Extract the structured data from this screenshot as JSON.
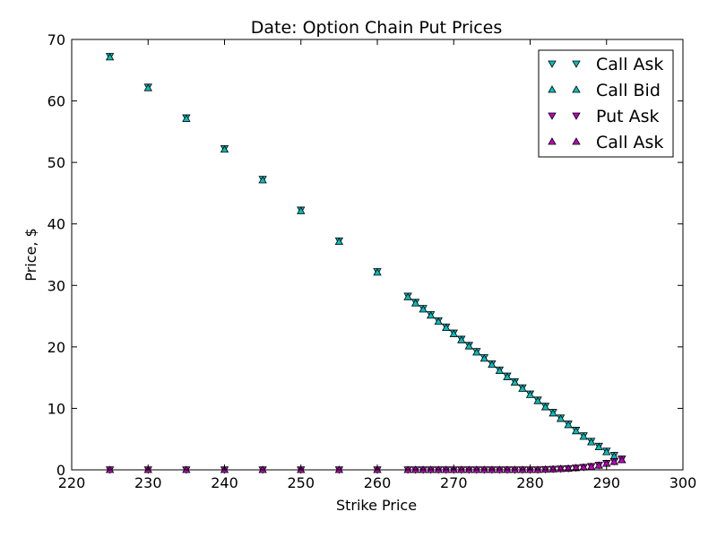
{
  "chart_data": {
    "type": "scatter",
    "title": "Date: Option Chain Put Prices",
    "xlabel": "Strike Price",
    "ylabel": "Price, $",
    "xlim": [
      220,
      300
    ],
    "ylim": [
      0,
      70
    ],
    "xticks": [
      220,
      230,
      240,
      250,
      260,
      270,
      280,
      290,
      300
    ],
    "yticks": [
      0,
      10,
      20,
      30,
      40,
      50,
      60,
      70
    ],
    "grid": false,
    "legend_position": "top-right",
    "colors": {
      "call": "#00bfbf",
      "put": "#bf00bf"
    },
    "series": [
      {
        "name": "Call Ask",
        "marker": "triangle-down",
        "color": "#00bfbf",
        "x": [
          225,
          230,
          235,
          240,
          245,
          250,
          255,
          260,
          264,
          265,
          266,
          267,
          268,
          269,
          270,
          271,
          272,
          273,
          274,
          275,
          276,
          277,
          278,
          279,
          280,
          281,
          282,
          283,
          284,
          285,
          286,
          287,
          288,
          289,
          290,
          291,
          292
        ],
        "y": [
          67.3,
          62.3,
          57.3,
          52.3,
          47.3,
          42.3,
          37.3,
          32.3,
          28.3,
          27.3,
          26.3,
          25.3,
          24.3,
          23.3,
          22.3,
          21.3,
          20.3,
          19.3,
          18.3,
          17.3,
          16.3,
          15.3,
          14.4,
          13.4,
          12.4,
          11.4,
          10.4,
          9.4,
          8.5,
          7.5,
          6.5,
          5.6,
          4.7,
          3.9,
          3.1,
          2.4,
          1.8
        ]
      },
      {
        "name": "Call Bid",
        "marker": "triangle-up",
        "color": "#00bfbf",
        "x": [
          225,
          230,
          235,
          240,
          245,
          250,
          255,
          260,
          264,
          265,
          266,
          267,
          268,
          269,
          270,
          271,
          272,
          273,
          274,
          275,
          276,
          277,
          278,
          279,
          280,
          281,
          282,
          283,
          284,
          285,
          286,
          287,
          288,
          289,
          290,
          291,
          292
        ],
        "y": [
          67.1,
          62.1,
          57.1,
          52.1,
          47.1,
          42.1,
          37.1,
          32.1,
          28.1,
          27.1,
          26.1,
          25.1,
          24.1,
          23.1,
          22.1,
          21.1,
          20.1,
          19.1,
          18.1,
          17.1,
          16.1,
          15.1,
          14.2,
          13.2,
          12.2,
          11.2,
          10.2,
          9.2,
          8.3,
          7.3,
          6.3,
          5.4,
          4.5,
          3.7,
          2.9,
          2.2,
          1.6
        ]
      },
      {
        "name": "Put Ask",
        "marker": "triangle-down",
        "color": "#bf00bf",
        "x": [
          225,
          230,
          235,
          240,
          245,
          250,
          255,
          260,
          264,
          265,
          266,
          267,
          268,
          269,
          270,
          271,
          272,
          273,
          274,
          275,
          276,
          277,
          278,
          279,
          280,
          281,
          282,
          283,
          284,
          285,
          286,
          287,
          288,
          289,
          290,
          291,
          292
        ],
        "y": [
          0.05,
          0.05,
          0.05,
          0.05,
          0.05,
          0.05,
          0.05,
          0.05,
          0.05,
          0.05,
          0.05,
          0.05,
          0.05,
          0.05,
          0.05,
          0.05,
          0.05,
          0.05,
          0.05,
          0.05,
          0.05,
          0.05,
          0.05,
          0.05,
          0.05,
          0.05,
          0.1,
          0.15,
          0.2,
          0.25,
          0.35,
          0.45,
          0.6,
          0.8,
          1.1,
          1.4,
          1.8
        ]
      },
      {
        "name": "Call Ask",
        "marker": "triangle-up",
        "color": "#bf00bf",
        "x": [
          225,
          230,
          235,
          240,
          245,
          250,
          255,
          260,
          264,
          265,
          266,
          267,
          268,
          269,
          270,
          271,
          272,
          273,
          274,
          275,
          276,
          277,
          278,
          279,
          280,
          281,
          282,
          283,
          284,
          285,
          286,
          287,
          288,
          289,
          290,
          291,
          292
        ],
        "y": [
          0.0,
          0.0,
          0.0,
          0.0,
          0.0,
          0.0,
          0.0,
          0.0,
          0.0,
          0.0,
          0.0,
          0.0,
          0.0,
          0.0,
          0.0,
          0.0,
          0.0,
          0.0,
          0.0,
          0.0,
          0.0,
          0.0,
          0.0,
          0.0,
          0.0,
          0.0,
          0.05,
          0.1,
          0.15,
          0.2,
          0.3,
          0.4,
          0.5,
          0.7,
          1.0,
          1.3,
          1.6
        ]
      }
    ]
  }
}
